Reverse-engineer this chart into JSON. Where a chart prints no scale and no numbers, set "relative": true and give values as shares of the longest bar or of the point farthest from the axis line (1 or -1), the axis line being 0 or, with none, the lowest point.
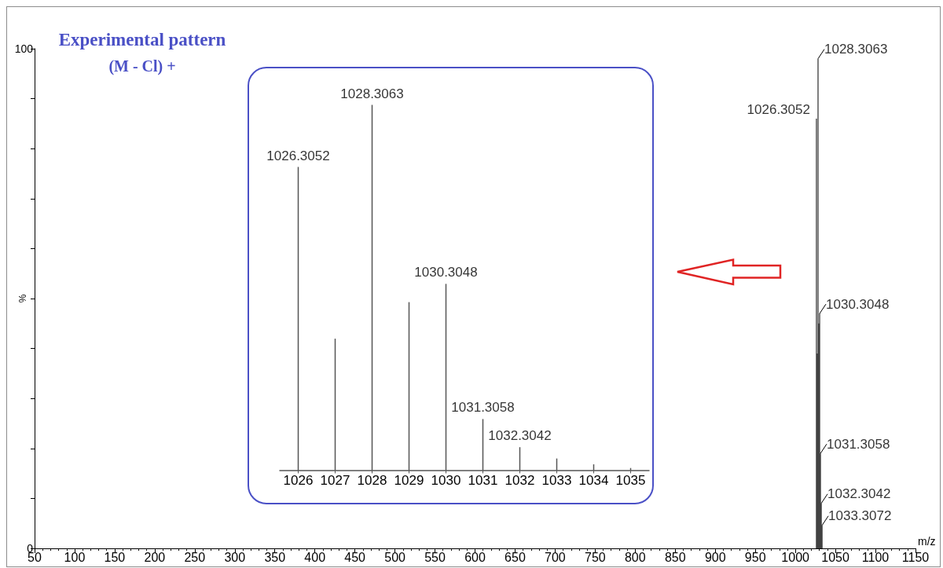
{
  "chart_data": [
    {
      "type": "bar",
      "title": "Experimental pattern",
      "subtitle": "(M - Cl) +",
      "xlabel": "m/z",
      "ylabel": "%",
      "x": [
        1026.3052,
        1027.3,
        1028.3063,
        1029.3,
        1030.3048,
        1031.3058,
        1032.3042,
        1033.3072
      ],
      "values": [
        86,
        39,
        98,
        45,
        47,
        19,
        9,
        4.6
      ],
      "annotations": [
        {
          "text": "1026.3052",
          "x": 1026.3052,
          "y": 86
        },
        {
          "text": "1028.3063",
          "x": 1028.3063,
          "y": 98
        },
        {
          "text": "1030.3048",
          "x": 1030.3048,
          "y": 47
        },
        {
          "text": "1031.3058",
          "x": 1031.3058,
          "y": 19
        },
        {
          "text": "1032.3042",
          "x": 1032.3042,
          "y": 9
        },
        {
          "text": "1033.3072",
          "x": 1033.3072,
          "y": 4.6
        }
      ],
      "color": "#000000",
      "xlim": [
        50,
        1150
      ],
      "xticks": [
        50,
        {
          "value": 60,
          "label": null
        },
        {
          "value": 70,
          "label": null
        },
        {
          "value": 80,
          "label": null
        },
        {
          "value": 90,
          "label": null
        },
        100,
        {
          "value": 110,
          "label": null
        },
        {
          "value": 120,
          "label": null
        },
        {
          "value": 130,
          "label": null
        },
        {
          "value": 140,
          "label": null
        },
        150,
        {
          "value": 160,
          "label": null
        },
        {
          "value": 170,
          "label": null
        },
        {
          "value": 180,
          "label": null
        },
        {
          "value": 190,
          "label": null
        },
        200,
        {
          "value": 210,
          "label": null
        },
        {
          "value": 220,
          "label": null
        },
        {
          "value": 230,
          "label": null
        },
        {
          "value": 240,
          "label": null
        },
        250,
        {
          "value": 260,
          "label": null
        },
        {
          "value": 270,
          "label": null
        },
        {
          "value": 280,
          "label": null
        },
        {
          "value": 290,
          "label": null
        },
        300,
        {
          "value": 310,
          "label": null
        },
        {
          "value": 320,
          "label": null
        },
        {
          "value": 330,
          "label": null
        },
        {
          "value": 340,
          "label": null
        },
        350,
        {
          "value": 360,
          "label": null
        },
        {
          "value": 370,
          "label": null
        },
        {
          "value": 380,
          "label": null
        },
        {
          "value": 390,
          "label": null
        },
        400,
        {
          "value": 410,
          "label": null
        },
        {
          "value": 420,
          "label": null
        },
        {
          "value": 430,
          "label": null
        },
        {
          "value": 440,
          "label": null
        },
        450,
        {
          "value": 460,
          "label": null
        },
        {
          "value": 470,
          "label": null
        },
        {
          "value": 480,
          "label": null
        },
        {
          "value": 490,
          "label": null
        },
        500,
        {
          "value": 510,
          "label": null
        },
        {
          "value": 520,
          "label": null
        },
        {
          "value": 530,
          "label": null
        },
        {
          "value": 540,
          "label": null
        },
        550,
        {
          "value": 560,
          "label": null
        },
        {
          "value": 570,
          "label": null
        },
        {
          "value": 580,
          "label": null
        },
        {
          "value": 590,
          "label": null
        },
        600,
        {
          "value": 610,
          "label": null
        },
        {
          "value": 620,
          "label": null
        },
        {
          "value": 630,
          "label": null
        },
        {
          "value": 640,
          "label": null
        },
        650,
        {
          "value": 660,
          "label": null
        },
        {
          "value": 670,
          "label": null
        },
        {
          "value": 680,
          "label": null
        },
        {
          "value": 690,
          "label": null
        },
        700,
        {
          "value": 710,
          "label": null
        },
        {
          "value": 720,
          "label": null
        },
        {
          "value": 730,
          "label": null
        },
        {
          "value": 740,
          "label": null
        },
        750,
        {
          "value": 760,
          "label": null
        },
        {
          "value": 770,
          "label": null
        },
        {
          "value": 780,
          "label": null
        },
        {
          "value": 790,
          "label": null
        },
        800,
        {
          "value": 810,
          "label": null
        },
        {
          "value": 820,
          "label": null
        },
        {
          "value": 830,
          "label": null
        },
        {
          "value": 840,
          "label": null
        },
        850,
        {
          "value": 860,
          "label": null
        },
        {
          "value": 870,
          "label": null
        },
        {
          "value": 880,
          "label": null
        },
        {
          "value": 890,
          "label": null
        },
        900,
        {
          "value": 910,
          "label": null
        },
        {
          "value": 920,
          "label": null
        },
        {
          "value": 930,
          "label": null
        },
        {
          "value": 940,
          "label": null
        },
        950,
        {
          "value": 960,
          "label": null
        },
        {
          "value": 970,
          "label": null
        },
        {
          "value": 980,
          "label": null
        },
        {
          "value": 990,
          "label": null
        },
        1000,
        {
          "value": 1010,
          "label": null
        },
        {
          "value": 1020,
          "label": null
        },
        {
          "value": 1030,
          "label": null
        },
        {
          "value": 1040,
          "label": null
        },
        1050,
        {
          "value": 1060,
          "label": null
        },
        {
          "value": 1070,
          "label": null
        },
        {
          "value": 1080,
          "label": null
        },
        {
          "value": 1090,
          "label": null
        },
        1100,
        {
          "value": 1110,
          "label": null
        },
        {
          "value": 1120,
          "label": null
        },
        {
          "value": 1130,
          "label": null
        },
        {
          "value": 1140,
          "label": null
        },
        1150
      ],
      "ylim": [
        0,
        100
      ],
      "yticks": [
        0,
        {
          "value": 10,
          "label": null
        },
        {
          "value": 20,
          "label": null
        },
        {
          "value": 30,
          "label": null
        },
        {
          "value": 40,
          "label": null
        },
        {
          "value": 50,
          "label": null
        },
        {
          "value": 60,
          "label": null
        },
        {
          "value": 70,
          "label": null
        },
        {
          "value": 80,
          "label": null
        },
        {
          "value": 90,
          "label": null
        },
        100
      ]
    },
    {
      "type": "bar",
      "categories": [
        "1026",
        "1027",
        "1028",
        "1029",
        "1030",
        "1031",
        "1032",
        "1033",
        "1034",
        "1035"
      ],
      "values": [
        0.83,
        0.36,
        1,
        0.46,
        0.51,
        0.14,
        0.063,
        0.032,
        0.016,
        0.006
      ],
      "annotations": [
        {
          "text": "1026.3052",
          "x": "1026",
          "y": 0.83
        },
        {
          "text": "1028.3063",
          "x": "1028",
          "y": 1
        },
        {
          "text": "1030.3048",
          "x": "1030",
          "y": 0.51
        },
        {
          "text": "1031.3058",
          "x": "1031",
          "y": 0.14
        },
        {
          "text": "1032.3042",
          "x": "1032",
          "y": 0.063
        }
      ],
      "relative": true,
      "color": "#555555"
    }
  ]
}
